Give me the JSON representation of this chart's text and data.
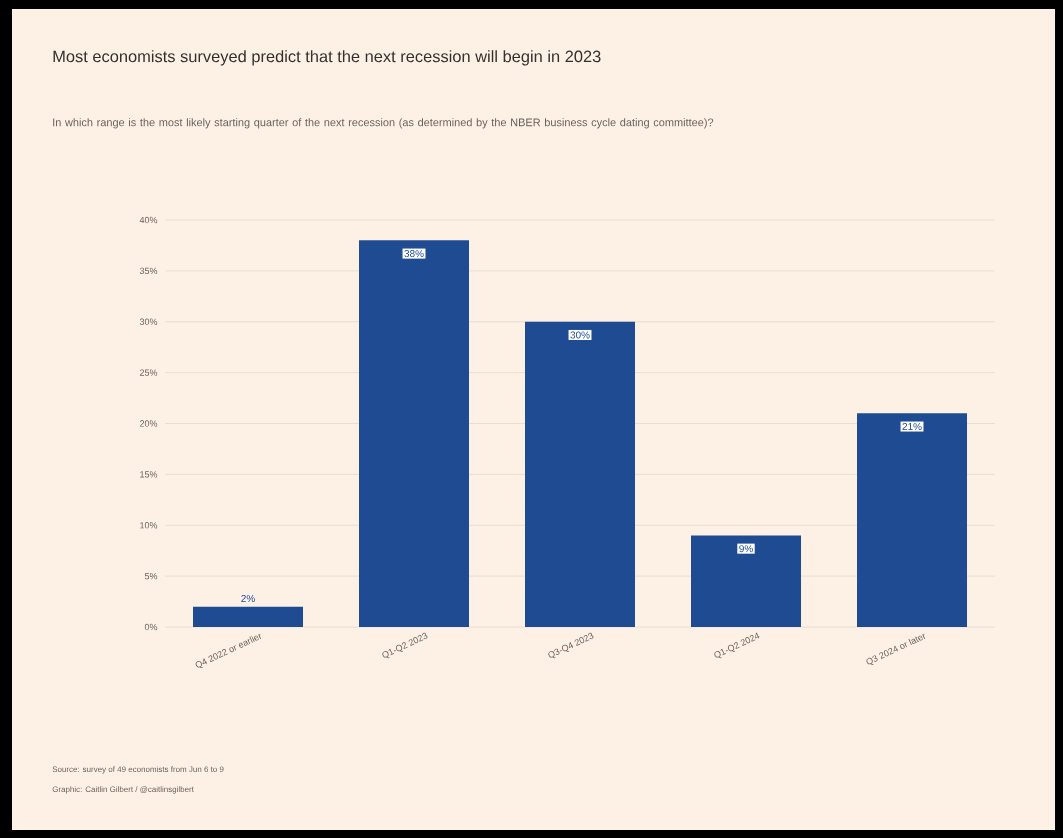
{
  "chart_data": {
    "type": "bar",
    "title": "Most economists surveyed predict that the next recession will begin in 2023",
    "subtitle": "In which range is the most likely starting quarter of the next recession (as determined by the NBER business cycle dating committee)?",
    "categories": [
      "Q4 2022 or earlier",
      "Q1-Q2 2023",
      "Q3-Q4 2023",
      "Q1-Q2 2024",
      "Q3 2024 or later"
    ],
    "values": [
      2,
      38,
      30,
      9,
      21
    ],
    "value_labels": [
      "2%",
      "38%",
      "30%",
      "9%",
      "21%"
    ],
    "color": "#1f4b93",
    "ylim": [
      0,
      40
    ],
    "yticks": [
      {
        "value": 0,
        "label": "0%"
      },
      {
        "value": 5,
        "label": "5%"
      },
      {
        "value": 10,
        "label": "10%"
      },
      {
        "value": 15,
        "label": "15%"
      },
      {
        "value": 20,
        "label": "20%"
      },
      {
        "value": 25,
        "label": "25%"
      },
      {
        "value": 30,
        "label": "30%"
      },
      {
        "value": 35,
        "label": "35%"
      },
      {
        "value": 40,
        "label": "40%"
      }
    ],
    "grid": "y",
    "annotations": [
      "Source: survey of 49 economists from Jun 6 to 9",
      "Graphic: Caitlin Gilbert / @caitlinsgilbert"
    ]
  }
}
